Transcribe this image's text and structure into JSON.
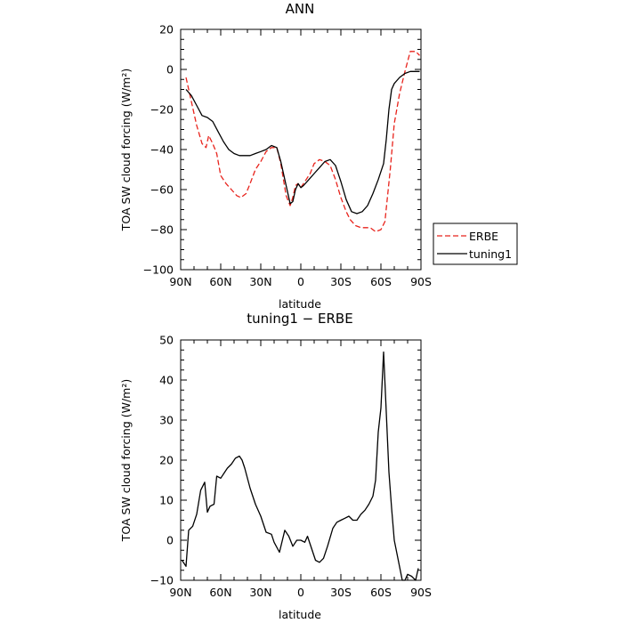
{
  "chart_data": [
    {
      "type": "line",
      "title": "ANN",
      "xlabel": "latitude",
      "ylabel": "TOA SW cloud forcing (W/m²)",
      "xlim": [
        90,
        -90
      ],
      "ylim": [
        -100,
        20
      ],
      "x_ticks": [
        90,
        60,
        30,
        0,
        -30,
        -60,
        -90
      ],
      "x_tick_labels": [
        "90N",
        "60N",
        "30N",
        "0",
        "30S",
        "60S",
        "90S"
      ],
      "y_ticks": [
        -100,
        -80,
        -60,
        -40,
        -20,
        0,
        20
      ],
      "y_tick_labels": [
        "−100",
        "−80",
        "−60",
        "−40",
        "−20",
        "0",
        "20"
      ],
      "legend_position": "outside-right",
      "series": [
        {
          "name": "ERBE",
          "color": "#e8231c",
          "dash": "dashed",
          "x": [
            86,
            82,
            78,
            74,
            71,
            69,
            66,
            63,
            60,
            56,
            52,
            48,
            45,
            41,
            38,
            34,
            30,
            26,
            22,
            18,
            15,
            11,
            8,
            6,
            4,
            2,
            0,
            -2,
            -4,
            -7,
            -10,
            -14,
            -18,
            -22,
            -26,
            -30,
            -34,
            -37,
            -41,
            -45,
            -48,
            -52,
            -56,
            -60,
            -63,
            -67,
            -70,
            -74,
            -78,
            -82,
            -86,
            -89
          ],
          "y": [
            -4,
            -16,
            -28,
            -37,
            -39,
            -33,
            -37,
            -42,
            -53,
            -57,
            -60,
            -63,
            -64,
            -62,
            -57,
            -50,
            -46,
            -41,
            -39,
            -39,
            -47,
            -63,
            -68,
            -64,
            -58,
            -57,
            -59,
            -57,
            -55,
            -52,
            -47,
            -45,
            -46,
            -48,
            -55,
            -64,
            -71,
            -75,
            -78,
            -79,
            -79,
            -79,
            -81,
            -80,
            -76,
            -50,
            -27,
            -12,
            -1,
            9,
            9,
            7
          ]
        },
        {
          "name": "tuning1",
          "color": "#000000",
          "dash": "solid",
          "x": [
            86,
            82,
            78,
            74,
            70,
            66,
            62,
            58,
            54,
            50,
            46,
            42,
            38,
            34,
            30,
            26,
            22,
            18,
            15,
            11,
            8,
            6,
            4,
            2,
            0,
            -2,
            -6,
            -10,
            -14,
            -18,
            -22,
            -26,
            -30,
            -34,
            -38,
            -42,
            -46,
            -50,
            -54,
            -58,
            -62,
            -64,
            -66,
            -68,
            -70,
            -74,
            -78,
            -82,
            -86,
            -89
          ],
          "y": [
            -10,
            -13,
            -18,
            -23,
            -24,
            -26,
            -31,
            -36,
            -40,
            -42,
            -43,
            -43,
            -43,
            -42,
            -41,
            -40,
            -38,
            -39,
            -46,
            -58,
            -67,
            -66,
            -60,
            -57,
            -59,
            -58,
            -55,
            -52,
            -49,
            -46,
            -45,
            -48,
            -56,
            -65,
            -71,
            -72,
            -71,
            -68,
            -62,
            -55,
            -47,
            -35,
            -20,
            -10,
            -7,
            -4,
            -2,
            -1,
            -1,
            -1
          ]
        }
      ]
    },
    {
      "type": "line",
      "title": "tuning1 − ERBE",
      "xlabel": "latitude",
      "ylabel": "TOA SW cloud forcing (W/m²)",
      "xlim": [
        90,
        -90
      ],
      "ylim": [
        -10,
        50
      ],
      "x_ticks": [
        90,
        60,
        30,
        0,
        -30,
        -60,
        -90
      ],
      "x_tick_labels": [
        "90N",
        "60N",
        "30N",
        "0",
        "30S",
        "60S",
        "90S"
      ],
      "y_ticks": [
        -10,
        0,
        10,
        20,
        30,
        40,
        50
      ],
      "y_tick_labels": [
        "−10",
        "0",
        "10",
        "20",
        "30",
        "40",
        "50"
      ],
      "series": [
        {
          "color": "#000000",
          "dash": "solid",
          "x": [
            89,
            86,
            84,
            81,
            78,
            75,
            72,
            70,
            68,
            65,
            63,
            60,
            57,
            55,
            52,
            49,
            46,
            44,
            42,
            38,
            34,
            30,
            26,
            22,
            20,
            16,
            12,
            9,
            6,
            3,
            0,
            -3,
            -5,
            -8,
            -11,
            -14,
            -17,
            -20,
            -24,
            -27,
            -30,
            -33,
            -36,
            -39,
            -42,
            -45,
            -48,
            -51,
            -54,
            -56,
            -58,
            -60,
            -62,
            -64,
            -66,
            -68,
            -70,
            -73,
            -76,
            -78,
            -80,
            -83,
            -86,
            -88
          ],
          "y": [
            -5,
            -6.5,
            2.5,
            3.5,
            6.5,
            12.5,
            14.5,
            7,
            8.5,
            9,
            16,
            15.5,
            17,
            18,
            19,
            20.5,
            21,
            20,
            18,
            13,
            9,
            6,
            2,
            1.5,
            -0.5,
            -3,
            2.5,
            1,
            -1.5,
            0,
            0,
            -0.5,
            1,
            -2,
            -5,
            -5.5,
            -4.5,
            -1.5,
            3,
            4.5,
            5,
            5.5,
            6,
            5,
            5,
            6.5,
            7.5,
            9,
            11,
            15,
            27,
            33,
            47,
            32,
            17,
            8,
            0,
            -5,
            -10,
            -10,
            -8.5,
            -9,
            -10,
            -7
          ]
        }
      ]
    }
  ]
}
